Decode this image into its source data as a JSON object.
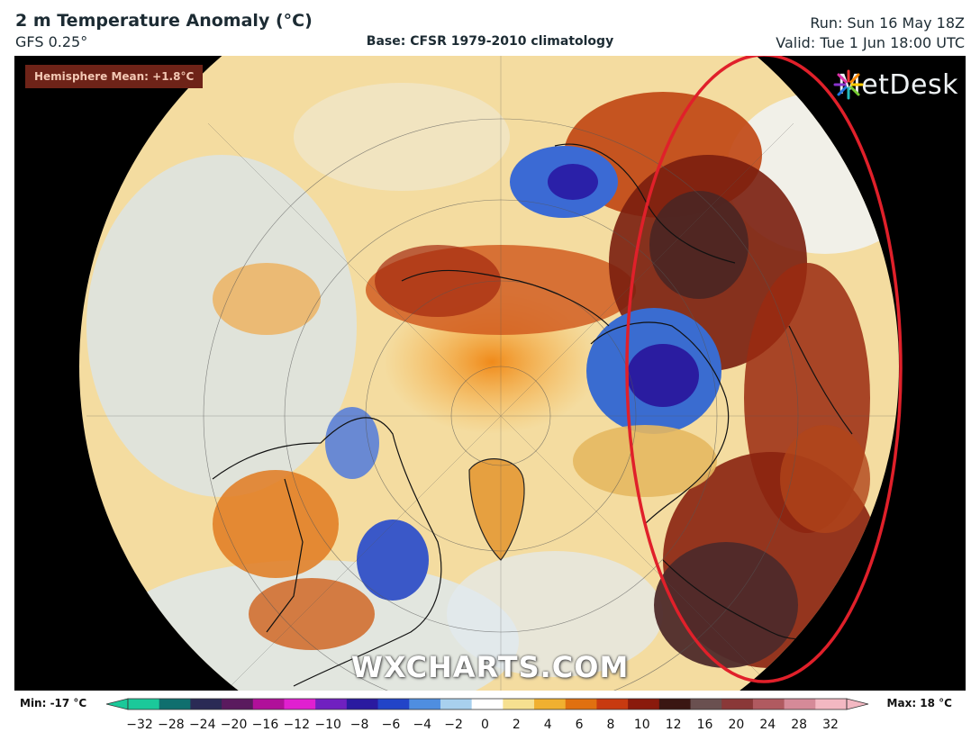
{
  "header": {
    "title": "2 m Temperature Anomaly (°C)",
    "model": "GFS 0.25°",
    "base": "Base: CFSR 1979-2010 climatology",
    "run": "Run: Sun 16 May 18Z",
    "valid": "Valid: Tue 1 Jun 18:00 UTC"
  },
  "map": {
    "hemisphere_mean": "Hemisphere Mean: +1.8°C",
    "brand": "MetDesk",
    "watermark": "WXCHARTS.COM",
    "highlight_color": "#e0202a"
  },
  "scale": {
    "min_label": "Min: -17 °C",
    "max_label": "Max: 18 °C",
    "ticks": [
      "−32",
      "−28",
      "−24",
      "−20",
      "−16",
      "−12",
      "−10",
      "−8",
      "−6",
      "−4",
      "−2",
      "0",
      "2",
      "4",
      "6",
      "8",
      "10",
      "12",
      "16",
      "20",
      "24",
      "28",
      "32"
    ],
    "colors": [
      "#1bc99a",
      "#0f6f6e",
      "#2a2a55",
      "#5a1a5e",
      "#b0109a",
      "#e020d0",
      "#7020c0",
      "#2a1aa0",
      "#2244c8",
      "#4f8ee0",
      "#a8d0ee",
      "#ffffff",
      "#f6e090",
      "#f0b030",
      "#e07010",
      "#c83a10",
      "#8a1a0c",
      "#3a1612",
      "#6a5050",
      "#8a3838",
      "#b05a60",
      "#d58a98",
      "#f3b8c2"
    ]
  }
}
